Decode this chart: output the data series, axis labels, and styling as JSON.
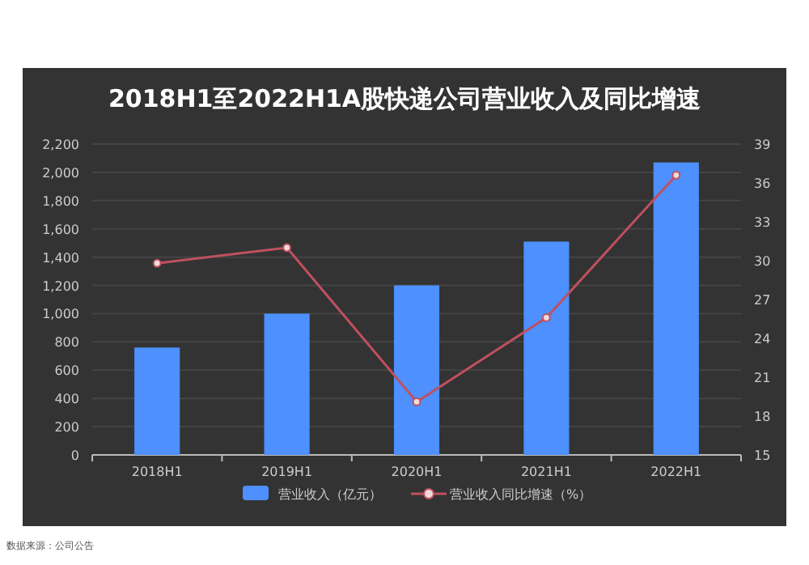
{
  "chart_data": {
    "type": "bar",
    "title": "2018H1至2022H1A股快递公司营业收入及同比增速",
    "categories": [
      "2018H1",
      "2019H1",
      "2020H1",
      "2021H1",
      "2022H1"
    ],
    "series": [
      {
        "name": "营业收入（亿元）",
        "color": "#4d90fe",
        "values": [
          760,
          1000,
          1200,
          1510,
          2070
        ]
      },
      {
        "name": "营业收入同比增速（%）",
        "type": "line",
        "axis": "y2",
        "color": "#c0505f",
        "marker": "circle",
        "values": [
          29.8,
          31.0,
          19.1,
          25.6,
          36.6
        ]
      }
    ],
    "ylim": [
      0,
      2200
    ],
    "yticks": [
      {
        "value": 0,
        "label": "0"
      },
      {
        "value": 200,
        "label": "200"
      },
      {
        "value": 400,
        "label": "400"
      },
      {
        "value": 600,
        "label": "600"
      },
      {
        "value": 800,
        "label": "800"
      },
      {
        "value": 1000,
        "label": "1,000"
      },
      {
        "value": 1200,
        "label": "1,200"
      },
      {
        "value": 1400,
        "label": "1,400"
      },
      {
        "value": 1600,
        "label": "1,600"
      },
      {
        "value": 1800,
        "label": "1,800"
      },
      {
        "value": 2000,
        "label": "2,000"
      },
      {
        "value": 2200,
        "label": "2,200"
      }
    ],
    "y2lim": [
      15,
      39
    ],
    "y2ticks": [
      15,
      18,
      21,
      24,
      27,
      30,
      33,
      36,
      39
    ],
    "grid": "y",
    "legend": "bottom",
    "annotations": [
      "数据来源：公司公告"
    ]
  }
}
